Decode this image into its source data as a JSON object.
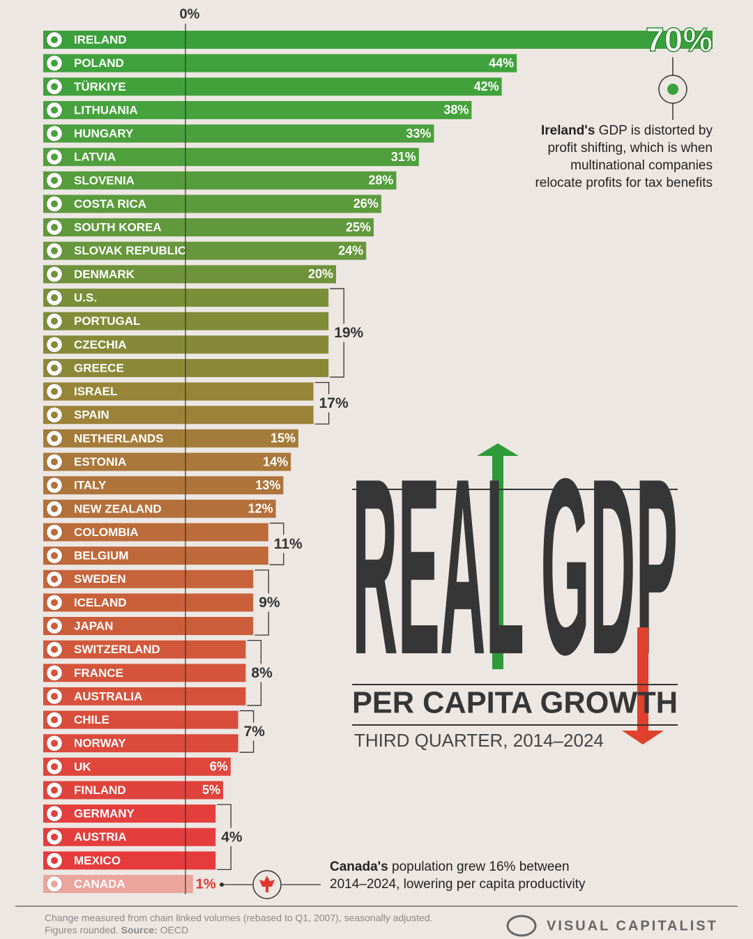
{
  "chart_data": {
    "type": "bar",
    "orientation": "horizontal",
    "title": "REAL GDP",
    "subtitle": "PER CAPITA GROWTH",
    "period": "THIRD QUARTER, 2014–2024",
    "categories": [
      "IRELAND",
      "POLAND",
      "TÜRKIYE",
      "LITHUANIA",
      "HUNGARY",
      "LATVIA",
      "SLOVENIA",
      "COSTA RICA",
      "SOUTH KOREA",
      "SLOVAK REPUBLIC",
      "DENMARK",
      "U.S.",
      "PORTUGAL",
      "CZECHIA",
      "GREECE",
      "ISRAEL",
      "SPAIN",
      "NETHERLANDS",
      "ESTONIA",
      "ITALY",
      "NEW ZEALAND",
      "COLOMBIA",
      "BELGIUM",
      "SWEDEN",
      "ICELAND",
      "JAPAN",
      "SWITZERLAND",
      "FRANCE",
      "AUSTRALIA",
      "CHILE",
      "NORWAY",
      "UK",
      "FINLAND",
      "GERMANY",
      "AUSTRIA",
      "MEXICO",
      "CANADA"
    ],
    "values": [
      70,
      44,
      42,
      38,
      33,
      31,
      28,
      26,
      25,
      24,
      20,
      19,
      19,
      19,
      19,
      17,
      17,
      15,
      14,
      13,
      12,
      11,
      11,
      9,
      9,
      9,
      8,
      8,
      8,
      7,
      7,
      6,
      5,
      4,
      4,
      4,
      1
    ],
    "value_labels": [
      "70%",
      "44%",
      "42%",
      "38%",
      "33%",
      "31%",
      "28%",
      "26%",
      "25%",
      "24%",
      "20%",
      "19%",
      "19%",
      "19%",
      "19%",
      "17%",
      "17%",
      "15%",
      "14%",
      "13%",
      "12%",
      "11%",
      "11%",
      "9%",
      "9%",
      "9%",
      "8%",
      "8%",
      "8%",
      "7%",
      "7%",
      "6%",
      "5%",
      "4%",
      "4%",
      "4%",
      "1%"
    ],
    "colors": [
      "#3aa03c",
      "#3fa23c",
      "#41a23c",
      "#45a23c",
      "#4aa03c",
      "#4f9f3c",
      "#559d3c",
      "#5b9b3c",
      "#60993c",
      "#66973c",
      "#6e933a",
      "#7a8f38",
      "#808c38",
      "#868a38",
      "#8b8838",
      "#968538",
      "#9b8238",
      "#a47c3a",
      "#a9783a",
      "#ae743a",
      "#b3703a",
      "#bb6c3a",
      "#bf683a",
      "#c6633a",
      "#c9603a",
      "#cc5d3b",
      "#d1583b",
      "#d4553b",
      "#d6523c",
      "#da4d3c",
      "#dc4a3c",
      "#df463c",
      "#e0433c",
      "#e33f3d",
      "#e43d3d",
      "#e53b3d",
      "#eba59c"
    ],
    "xlim": [
      0,
      70
    ],
    "xticks": [
      {
        "value": 0,
        "label": "0%"
      }
    ]
  },
  "annotations": {
    "ireland_note": {
      "bold": "Ireland's",
      "lines": [
        " GDP is distorted by",
        "profit shifting, which is when",
        "multinational companies",
        "relocate profits for tax benefits"
      ]
    },
    "canada_note": {
      "bold": "Canada's",
      "lines": [
        " population grew 16% between",
        "2014–2024, lowering per capita productivity"
      ]
    }
  },
  "footer": {
    "note": "Change measured from chain linked volumes (rebased to Q1, 2007), seasonally adjusted.",
    "rounding": "Figures rounded. ",
    "source_label": "Source:",
    "source": " OECD",
    "brand": "VISUAL CAPITALIST"
  }
}
